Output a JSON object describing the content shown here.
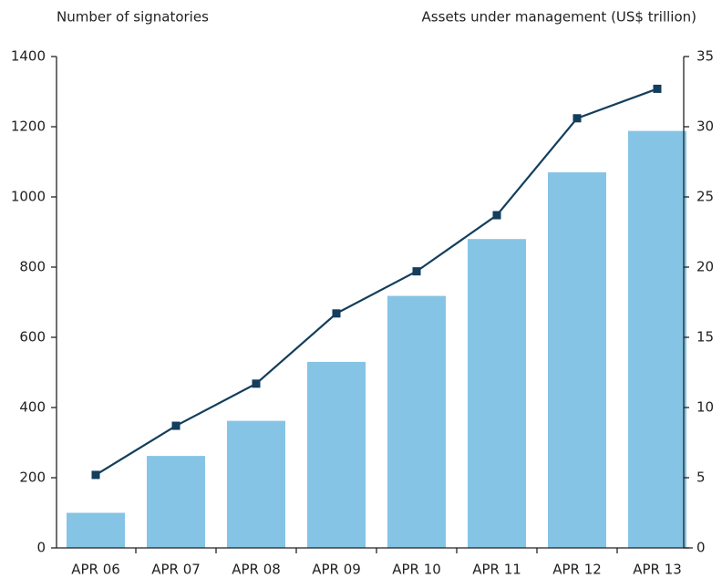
{
  "chart_data": {
    "type": "bar-line",
    "ylabel": "Number of signatories",
    "y2label": "Assets under management (US$ trillion)",
    "categories": [
      "APR 06",
      "APR 07",
      "APR 08",
      "APR 09",
      "APR 10",
      "APR 11",
      "APR 12",
      "APR 13"
    ],
    "series": [
      {
        "type": "bar",
        "color": "#85c4e4",
        "values": [
          100,
          262,
          362,
          530,
          718,
          880,
          1070,
          1188
        ]
      },
      {
        "type": "line",
        "axis": "y2",
        "color": "#133e5c",
        "values": [
          5.2,
          8.7,
          11.7,
          16.7,
          19.7,
          23.7,
          30.6,
          32.7
        ]
      }
    ],
    "ylim": [
      0,
      1400
    ],
    "yticks": [
      0,
      200,
      400,
      600,
      800,
      1000,
      1200,
      1400
    ],
    "y2lim": [
      0,
      35
    ],
    "y2ticks": [
      0,
      5,
      10,
      15,
      20,
      25,
      30,
      35
    ]
  }
}
